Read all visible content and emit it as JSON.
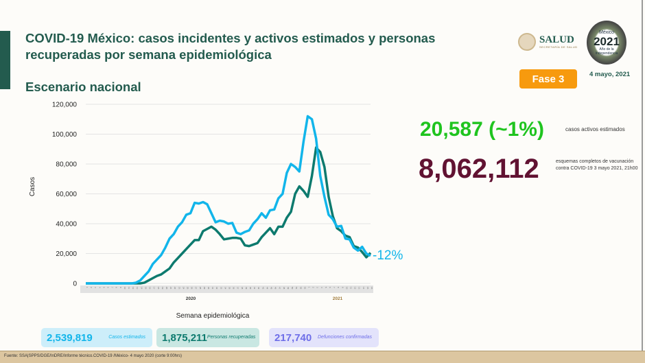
{
  "header": {
    "title": "COVID-19 México: casos incidentes y activos estimados y personas recuperadas por semana epidemiológica",
    "subtitle": "Escenario nacional",
    "logo_salud": "SALUD",
    "logo_salud_sub": "SECRETARÍA DE SALUD",
    "logo_2021": {
      "top": "México",
      "year": "2021",
      "bottom": "Año de la Independencia"
    },
    "phase": "Fase 3",
    "date": "4 mayo, 2021"
  },
  "stats": {
    "active_value": "20,587 (~1%)",
    "active_label": "casos activos estimados",
    "vaccination_value": "8,062,112",
    "vaccination_label": "esquemas completos de vacunación contra COVID-19 3 mayo 2021, 21h00"
  },
  "cards": [
    {
      "value": "2,539,819",
      "label": "Casos estimados"
    },
    {
      "value": "1,875,211",
      "label": "Personas recuperadas"
    },
    {
      "value": "217,740",
      "label": "Defunciones confirmadas"
    }
  ],
  "footer": "Fuente: SSA|SPPS/DGE/InDRE/Informe técnico.COVID-19 /México- 4 mayo 2020 (corte 9:00hrs)",
  "colors": {
    "brand_green": "#235b4e",
    "series_blue": "#12b5ea",
    "series_green": "#0d7a6e",
    "active_green": "#1fc41f",
    "vaccine": "#611232",
    "phase": "#f79a0e"
  },
  "chart_data": {
    "type": "line",
    "xlabel": "Semana epidemiológica",
    "ylabel": "Casos",
    "ylim": [
      0,
      120000
    ],
    "yticks": [
      "0",
      "20,000",
      "40,000",
      "60,000",
      "80,000",
      "100,000",
      "120,000"
    ],
    "year_labels": [
      "2020",
      "2021"
    ],
    "x_2020_weeks": 53,
    "x_2021_weeks": 16,
    "annotation": "-12%",
    "grid": true,
    "series": [
      {
        "color": "#12b5ea",
        "values": [
          0,
          0,
          0,
          0,
          0,
          0,
          0,
          0,
          0,
          0,
          0,
          0,
          500,
          2000,
          5000,
          8000,
          13000,
          16000,
          19000,
          24000,
          30000,
          33000,
          38000,
          41000,
          46000,
          47000,
          54000,
          53500,
          54500,
          53000,
          47000,
          41000,
          42000,
          41500,
          40000,
          40500,
          34000,
          33000,
          34500,
          35500,
          40000,
          43000,
          47000,
          44000,
          49000,
          49500,
          57000,
          60000,
          74000,
          80000,
          78000,
          75000,
          95000,
          112000,
          110000,
          97000,
          72000,
          58000,
          46000,
          43000,
          38000,
          38500,
          30000,
          29500,
          24000,
          22000,
          24500,
          20000,
          18500
        ]
      },
      {
        "color": "#0d7a6e",
        "values": [
          0,
          0,
          0,
          0,
          0,
          0,
          0,
          0,
          0,
          0,
          0,
          0,
          0,
          0,
          500,
          2000,
          3500,
          5000,
          6000,
          8000,
          10000,
          14000,
          17000,
          20000,
          23000,
          26000,
          29000,
          29000,
          35000,
          36500,
          38000,
          36000,
          33000,
          29500,
          30000,
          30500,
          30500,
          30000,
          25500,
          25000,
          26000,
          27000,
          31000,
          34000,
          37000,
          33000,
          38000,
          38000,
          44000,
          48000,
          60000,
          65000,
          62000,
          58000,
          72000,
          91000,
          88000,
          78000,
          58000,
          45000,
          37000,
          35000,
          32000,
          31000,
          25000,
          24000,
          21000,
          17500,
          20500
        ]
      }
    ]
  }
}
